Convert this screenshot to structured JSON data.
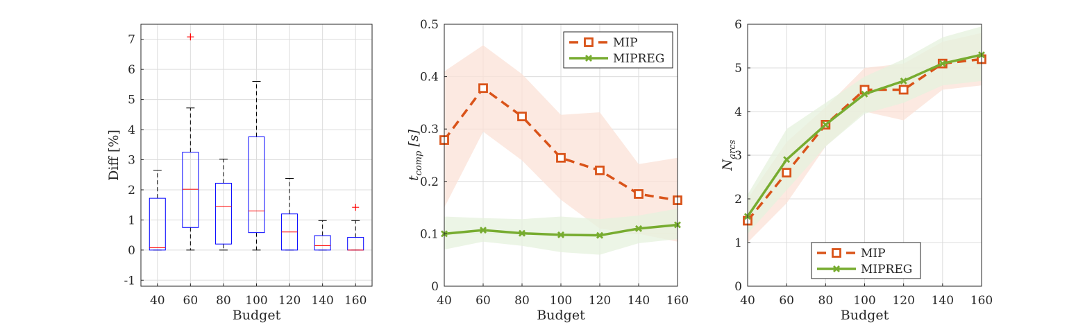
{
  "figure": {
    "background": "#ffffff",
    "colors": {
      "mip": "#D95319",
      "mipreg": "#77AC30",
      "mip_band": "#FBE1D7",
      "mipreg_band": "#E5F1DD",
      "box": "#0000FF",
      "median": "#FF0000",
      "whisker": "#000000",
      "outlier": "#FF0000"
    }
  },
  "chart_data": [
    {
      "type": "box",
      "xlabel": "Budget",
      "ylabel": "Diff [%]",
      "categories": [
        "40",
        "60",
        "80",
        "100",
        "120",
        "140",
        "160"
      ],
      "ylim": [
        -1.2,
        7.5
      ],
      "yticks": [
        -1,
        0,
        1,
        2,
        3,
        4,
        5,
        6,
        7
      ],
      "grid": true,
      "boxes": [
        {
          "category": "40",
          "min": 0,
          "q1": 0,
          "median": 0.08,
          "q3": 1.72,
          "max": 2.65,
          "outliers": []
        },
        {
          "category": "60",
          "min": 0,
          "q1": 0.75,
          "median": 2.02,
          "q3": 3.25,
          "max": 4.72,
          "outliers": [
            7.08
          ]
        },
        {
          "category": "80",
          "min": 0,
          "q1": 0.2,
          "median": 1.45,
          "q3": 2.22,
          "max": 3.02,
          "outliers": []
        },
        {
          "category": "100",
          "min": 0,
          "q1": 0.58,
          "median": 1.3,
          "q3": 3.76,
          "max": 5.6,
          "outliers": []
        },
        {
          "category": "120",
          "min": 0,
          "q1": 0,
          "median": 0.6,
          "q3": 1.2,
          "max": 2.38,
          "outliers": []
        },
        {
          "category": "140",
          "min": 0,
          "q1": 0,
          "median": 0.15,
          "q3": 0.48,
          "max": 0.98,
          "outliers": []
        },
        {
          "category": "160",
          "min": 0,
          "q1": 0,
          "median": 0,
          "q3": 0.42,
          "max": 0.98,
          "outliers": [
            1.42
          ]
        }
      ]
    },
    {
      "type": "line",
      "xlabel": "Budget",
      "ylabel": "t_comp [s]",
      "x": [
        40,
        60,
        80,
        100,
        120,
        140,
        160
      ],
      "xlim": [
        40,
        160
      ],
      "ylim": [
        0,
        0.5
      ],
      "xticks": [
        40,
        60,
        80,
        100,
        120,
        140,
        160
      ],
      "yticks": [
        0,
        0.1,
        0.2,
        0.3,
        0.4,
        0.5
      ],
      "grid": true,
      "legend": "top-right",
      "series": [
        {
          "name": "MIP",
          "values": [
            0.279,
            0.378,
            0.324,
            0.245,
            0.221,
            0.176,
            0.164
          ],
          "band_upper": [
            0.41,
            0.46,
            0.405,
            0.327,
            0.332,
            0.233,
            0.245
          ],
          "band_lower": [
            0.15,
            0.295,
            0.24,
            0.165,
            0.11,
            0.1,
            0.085
          ]
        },
        {
          "name": "MIPREG",
          "values": [
            0.1,
            0.107,
            0.101,
            0.098,
            0.097,
            0.11,
            0.117
          ],
          "band_upper": [
            0.133,
            0.13,
            0.128,
            0.133,
            0.128,
            0.135,
            0.148
          ],
          "band_lower": [
            0.07,
            0.085,
            0.077,
            0.065,
            0.06,
            0.082,
            0.09
          ]
        }
      ]
    },
    {
      "type": "line",
      "xlabel": "Budget",
      "ylabel": "N_arcs",
      "x": [
        40,
        60,
        80,
        100,
        120,
        140,
        160
      ],
      "xlim": [
        40,
        160
      ],
      "ylim": [
        0,
        6
      ],
      "xticks": [
        40,
        60,
        80,
        100,
        120,
        140,
        160
      ],
      "yticks": [
        0,
        1,
        2,
        3,
        4,
        5,
        6
      ],
      "grid": true,
      "legend": "bottom-center",
      "series": [
        {
          "name": "MIP",
          "values": [
            1.5,
            2.6,
            3.7,
            4.5,
            4.5,
            5.1,
            5.2
          ],
          "band_upper": [
            2.0,
            3.3,
            4.1,
            5.0,
            5.1,
            5.6,
            5.8
          ],
          "band_lower": [
            1.0,
            1.9,
            3.2,
            4.0,
            3.8,
            4.5,
            4.6
          ]
        },
        {
          "name": "MIPREG",
          "values": [
            1.6,
            2.9,
            3.7,
            4.4,
            4.7,
            5.1,
            5.3
          ],
          "band_upper": [
            2.1,
            3.6,
            4.2,
            4.8,
            5.2,
            5.7,
            5.95
          ],
          "band_lower": [
            1.2,
            2.2,
            3.2,
            3.95,
            4.2,
            4.6,
            4.7
          ]
        }
      ]
    }
  ]
}
